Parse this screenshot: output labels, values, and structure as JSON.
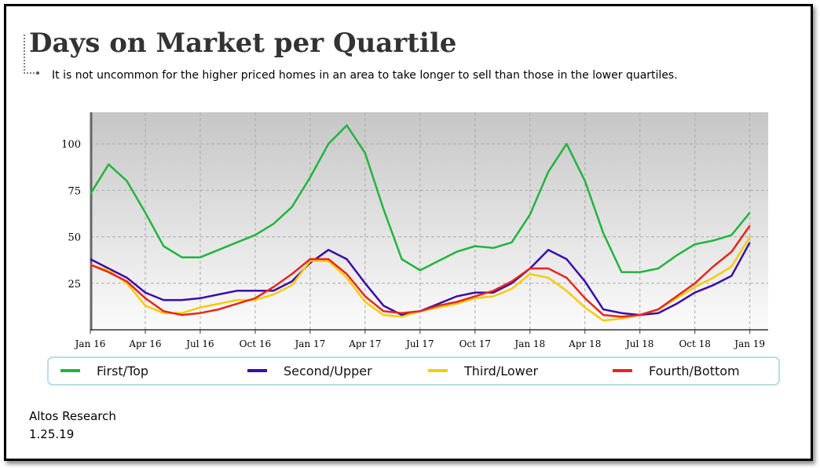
{
  "chart_data": {
    "type": "line",
    "title": "Days on Market per Quartile",
    "subtitle": "It is not uncommon for the higher priced homes in an area to take longer to sell than those in the lower quartiles.",
    "source": "Altos Research",
    "date": "1.25.19",
    "x": [
      "2016-01",
      "2016-02",
      "2016-03",
      "2016-04",
      "2016-05",
      "2016-06",
      "2016-07",
      "2016-08",
      "2016-09",
      "2016-10",
      "2016-11",
      "2016-12",
      "2017-01",
      "2017-02",
      "2017-03",
      "2017-04",
      "2017-05",
      "2017-06",
      "2017-07",
      "2017-08",
      "2017-09",
      "2017-10",
      "2017-11",
      "2017-12",
      "2018-01",
      "2018-02",
      "2018-03",
      "2018-04",
      "2018-05",
      "2018-06",
      "2018-07",
      "2018-08",
      "2018-09",
      "2018-10",
      "2018-11",
      "2018-12",
      "2019-01"
    ],
    "xlim": [
      "2016-01",
      "2019-02"
    ],
    "xticks": [
      {
        "value": "2016-01",
        "label": "Jan 16"
      },
      {
        "value": "2016-04",
        "label": "Apr 16"
      },
      {
        "value": "2016-07",
        "label": "Jul 16"
      },
      {
        "value": "2016-10",
        "label": "Oct 16"
      },
      {
        "value": "2017-01",
        "label": "Jan 17"
      },
      {
        "value": "2017-04",
        "label": "Apr 17"
      },
      {
        "value": "2017-07",
        "label": "Jul 17"
      },
      {
        "value": "2017-10",
        "label": "Oct 17"
      },
      {
        "value": "2018-01",
        "label": "Jan 18"
      },
      {
        "value": "2018-04",
        "label": "Apr 18"
      },
      {
        "value": "2018-07",
        "label": "Jul 18"
      },
      {
        "value": "2018-10",
        "label": "Oct 18"
      },
      {
        "value": "2019-01",
        "label": "Jan 19"
      }
    ],
    "ylim": [
      0,
      117
    ],
    "yticks": [
      25,
      50,
      75,
      100
    ],
    "grid": true,
    "legend": "bottom",
    "series": [
      {
        "name": "First/Top",
        "color": "#1fb53c",
        "values": [
          73,
          89,
          80,
          63,
          45,
          39,
          39,
          43,
          47,
          51,
          57,
          66,
          82,
          100,
          110,
          95,
          65,
          38,
          32,
          37,
          42,
          45,
          44,
          47,
          62,
          85,
          100,
          80,
          52,
          31,
          31,
          33,
          40,
          46,
          48,
          51,
          63
        ]
      },
      {
        "name": "Second/Upper",
        "color": "#3a0ca8",
        "values": [
          38,
          33,
          28,
          20,
          16,
          16,
          17,
          19,
          21,
          21,
          21,
          26,
          36,
          43,
          38,
          25,
          13,
          8,
          10,
          14,
          18,
          20,
          20,
          25,
          33,
          43,
          38,
          26,
          11,
          9,
          8,
          9,
          14,
          20,
          24,
          29,
          47
        ]
      },
      {
        "name": "Third/Lower",
        "color": "#f5cc0a",
        "values": [
          35,
          32,
          25,
          13,
          9,
          9,
          12,
          14,
          16,
          16,
          19,
          24,
          37,
          37,
          28,
          15,
          8,
          7,
          10,
          12,
          14,
          17,
          18,
          22,
          30,
          28,
          21,
          12,
          5,
          6,
          8,
          11,
          17,
          23,
          28,
          34,
          50
        ]
      },
      {
        "name": "Fourth/Bottom",
        "color": "#e8261c",
        "values": [
          35,
          31,
          26,
          17,
          10,
          8,
          9,
          11,
          14,
          17,
          23,
          30,
          38,
          38,
          30,
          18,
          10,
          9,
          10,
          13,
          15,
          18,
          21,
          26,
          33,
          33,
          28,
          17,
          8,
          7,
          8,
          11,
          18,
          25,
          34,
          42,
          56
        ]
      }
    ]
  }
}
